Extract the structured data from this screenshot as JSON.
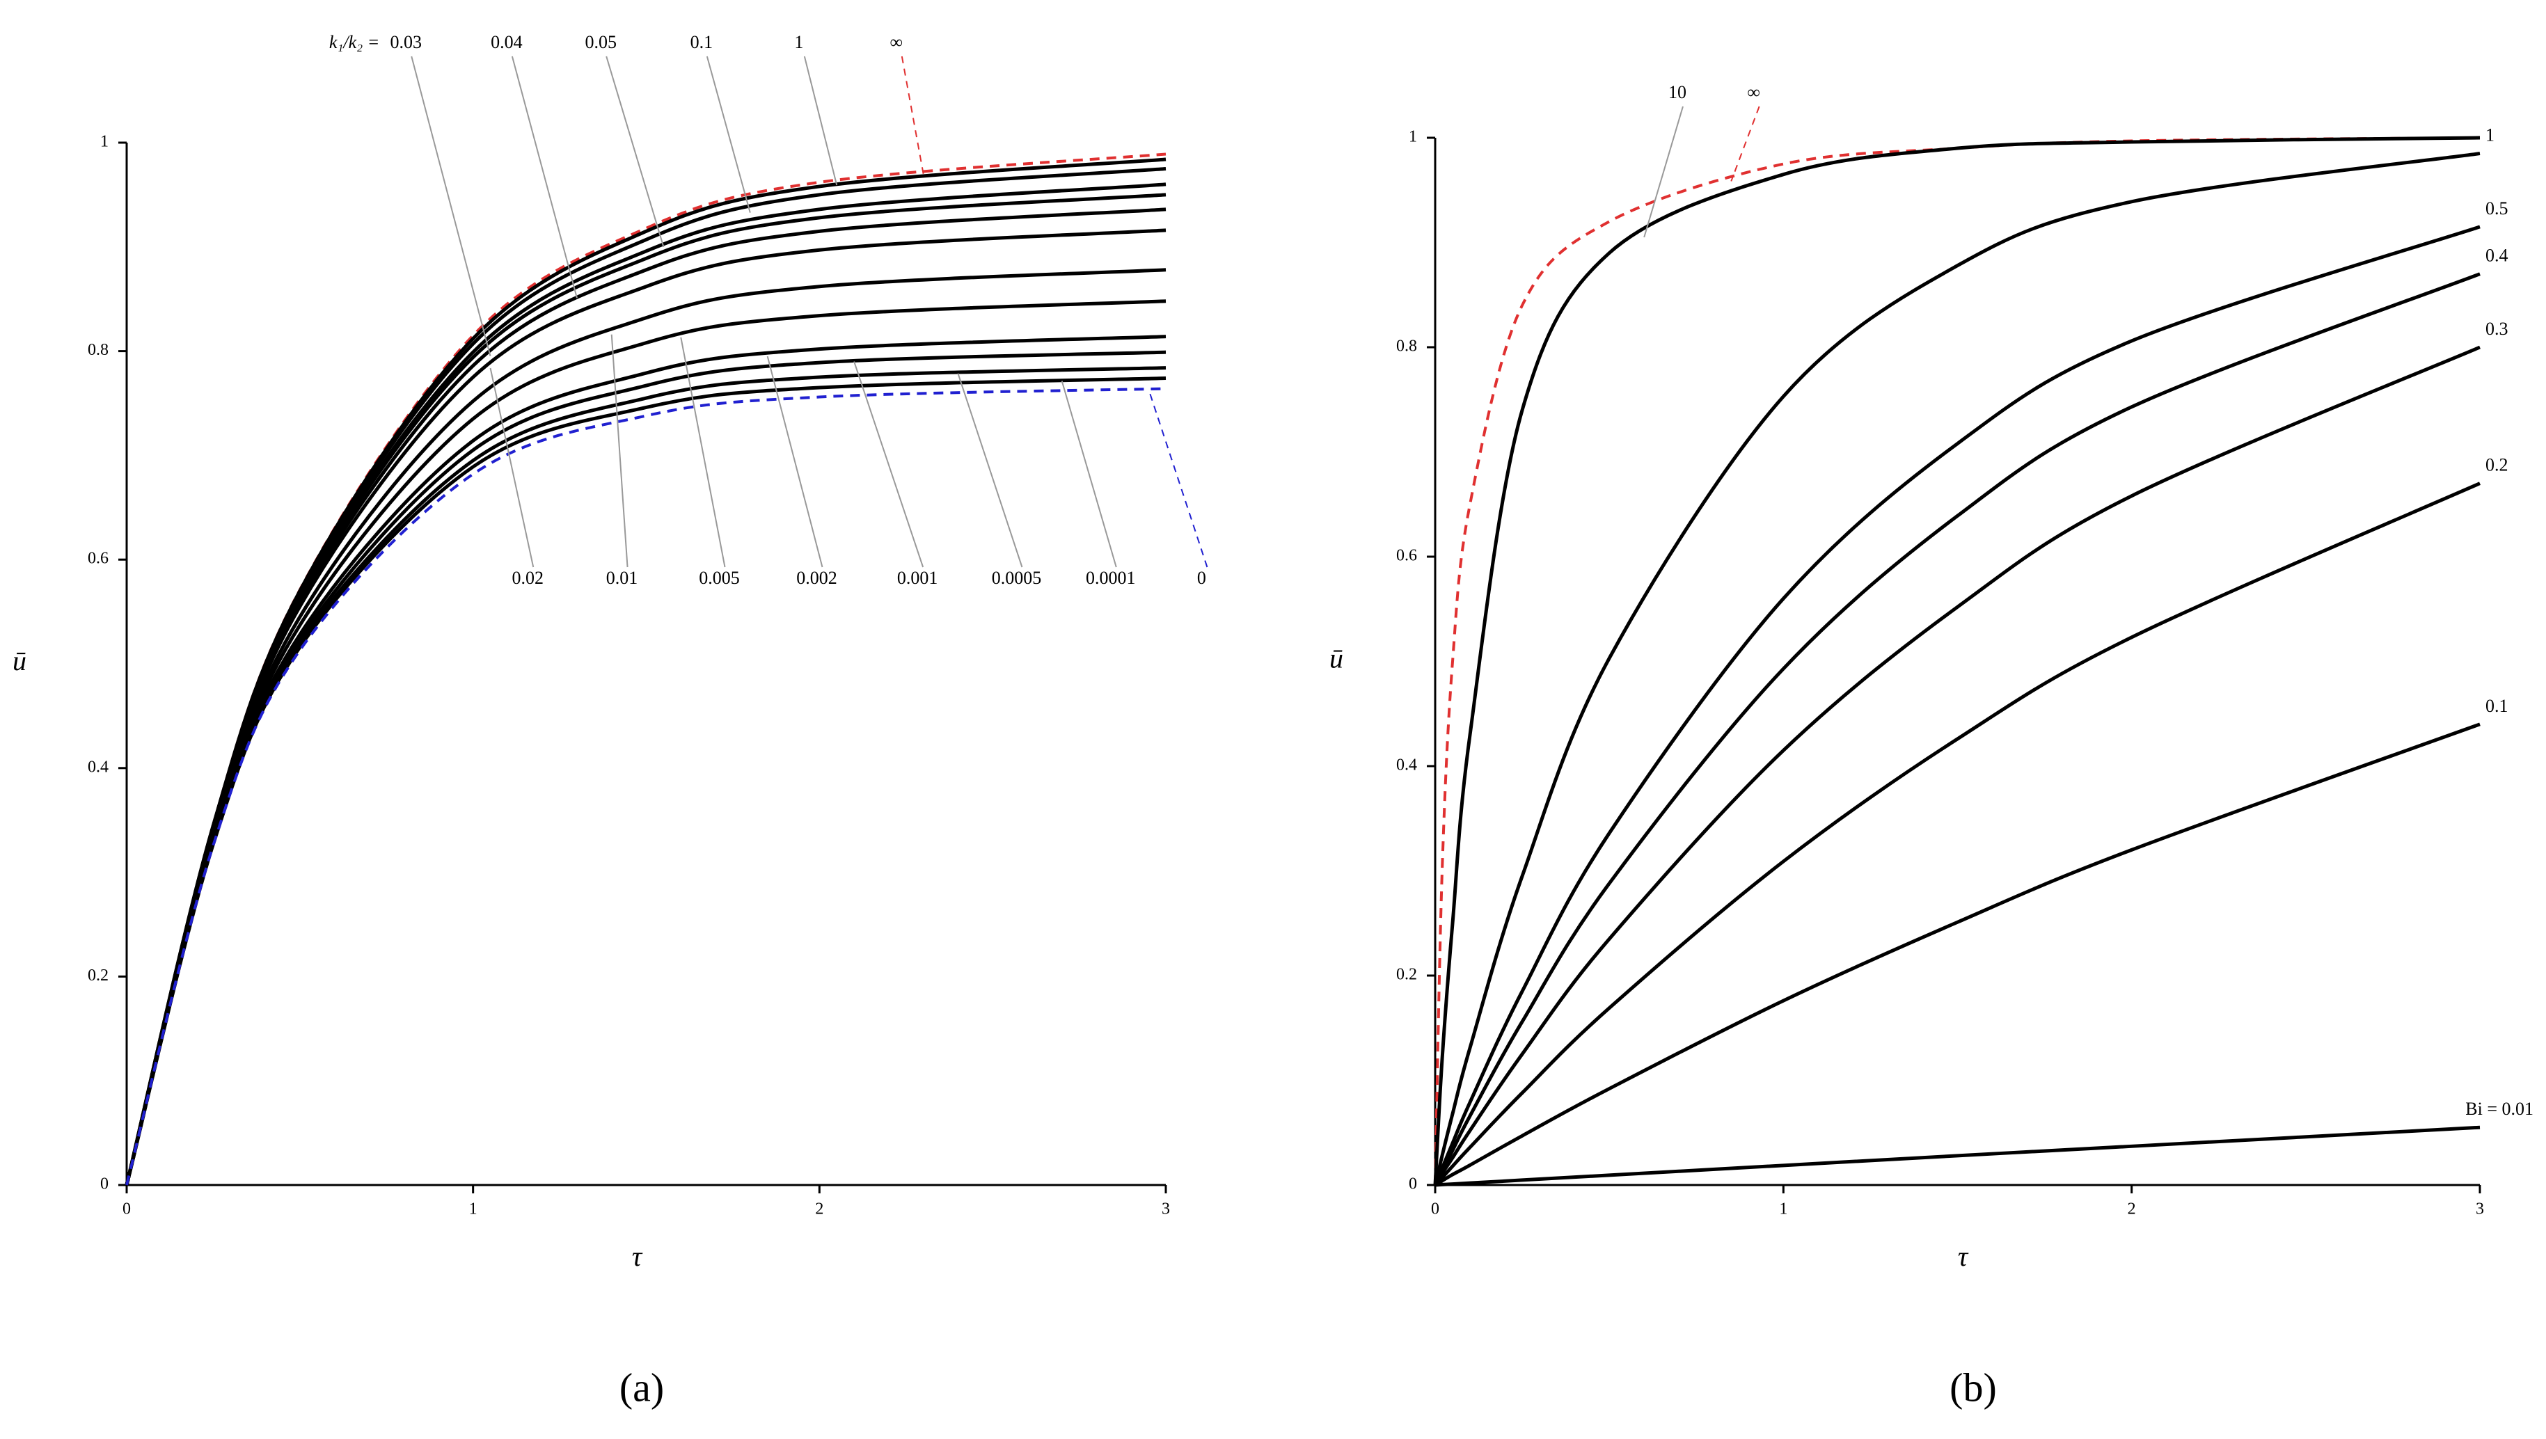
{
  "chart_data": [
    {
      "type": "line",
      "panel_label": "(a)",
      "xlabel": "τ",
      "ylabel": "ū",
      "annotation": "k₁/k₂ =",
      "x": [
        0,
        0.25,
        0.5,
        1,
        1.5,
        2,
        3
      ],
      "xlim": [
        0,
        3
      ],
      "ylim": [
        0,
        1
      ],
      "xticks": [
        0,
        1,
        2,
        3
      ],
      "yticks": [
        0,
        0.2,
        0.4,
        0.6,
        0.8,
        1
      ],
      "series": [
        {
          "name": "∞",
          "color": "#e03030",
          "dashed": true,
          "values": [
            0,
            0.346,
            0.571,
            0.815,
            0.918,
            0.962,
            0.989
          ]
        },
        {
          "name": "1",
          "color": "#000000",
          "dashed": false,
          "values": [
            0,
            0.345,
            0.57,
            0.812,
            0.915,
            0.958,
            0.984
          ]
        },
        {
          "name": "0.1",
          "color": "#000000",
          "dashed": false,
          "values": [
            0,
            0.345,
            0.568,
            0.807,
            0.907,
            0.95,
            0.975
          ]
        },
        {
          "name": "0.05",
          "color": "#000000",
          "dashed": false,
          "values": [
            0,
            0.344,
            0.565,
            0.799,
            0.896,
            0.936,
            0.96
          ]
        },
        {
          "name": "0.04",
          "color": "#000000",
          "dashed": false,
          "values": [
            0,
            0.343,
            0.563,
            0.794,
            0.889,
            0.928,
            0.95
          ]
        },
        {
          "name": "0.03",
          "color": "#000000",
          "dashed": false,
          "values": [
            0,
            0.342,
            0.559,
            0.786,
            0.878,
            0.915,
            0.936
          ]
        },
        {
          "name": "0.02",
          "color": "#000000",
          "dashed": false,
          "values": [
            0,
            0.34,
            0.555,
            0.775,
            0.862,
            0.897,
            0.916
          ]
        },
        {
          "name": "0.01",
          "color": "#000000",
          "dashed": false,
          "values": [
            0,
            0.337,
            0.545,
            0.752,
            0.832,
            0.862,
            0.878
          ]
        },
        {
          "name": "0.005",
          "color": "#000000",
          "dashed": false,
          "values": [
            0,
            0.334,
            0.537,
            0.735,
            0.808,
            0.834,
            0.848
          ]
        },
        {
          "name": "0.002",
          "color": "#000000",
          "dashed": false,
          "values": [
            0,
            0.331,
            0.528,
            0.714,
            0.779,
            0.802,
            0.814
          ]
        },
        {
          "name": "0.001",
          "color": "#000000",
          "dashed": false,
          "values": [
            0,
            0.33,
            0.523,
            0.705,
            0.767,
            0.789,
            0.799
          ]
        },
        {
          "name": "0.0005",
          "color": "#000000",
          "dashed": false,
          "values": [
            0,
            0.328,
            0.519,
            0.695,
            0.755,
            0.775,
            0.784
          ]
        },
        {
          "name": "0.0001",
          "color": "#000000",
          "dashed": false,
          "values": [
            0,
            0.327,
            0.516,
            0.689,
            0.746,
            0.765,
            0.774
          ]
        },
        {
          "name": "0",
          "color": "#2020d0",
          "dashed": true,
          "values": [
            0,
            0.326,
            0.513,
            0.682,
            0.738,
            0.756,
            0.764
          ]
        }
      ]
    },
    {
      "type": "line",
      "panel_label": "(b)",
      "xlabel": "τ",
      "ylabel": "ū",
      "x": [
        0,
        0.02,
        0.05,
        0.1,
        0.25,
        0.5,
        1,
        1.5,
        2,
        3
      ],
      "xlim": [
        0,
        3
      ],
      "ylim": [
        0,
        1
      ],
      "xticks": [
        0,
        1,
        2,
        3
      ],
      "yticks": [
        0,
        0.2,
        0.4,
        0.6,
        0.8,
        1
      ],
      "series": [
        {
          "name": "∞",
          "color": "#e03030",
          "dashed": true,
          "values": [
            0,
            0.3,
            0.5,
            0.65,
            0.84,
            0.92,
            0.975,
            0.99,
            0.997,
            1.0
          ]
        },
        {
          "name": "10",
          "color": "#000000",
          "dashed": false,
          "values": [
            0,
            0.12,
            0.25,
            0.43,
            0.74,
            0.89,
            0.965,
            0.99,
            0.996,
            1.0
          ]
        },
        {
          "name": "1",
          "color": "#000000",
          "dashed": false,
          "values": [
            0,
            0.028,
            0.068,
            0.131,
            0.295,
            0.503,
            0.753,
            0.878,
            0.939,
            0.985
          ]
        },
        {
          "name": "0.5",
          "color": "#000000",
          "dashed": false,
          "values": [
            0,
            0.016,
            0.04,
            0.079,
            0.185,
            0.336,
            0.56,
            0.708,
            0.806,
            0.915
          ]
        },
        {
          "name": "0.4",
          "color": "#000000",
          "dashed": false,
          "values": [
            0,
            0.013,
            0.033,
            0.066,
            0.156,
            0.288,
            0.493,
            0.639,
            0.743,
            0.87
          ]
        },
        {
          "name": "0.3",
          "color": "#000000",
          "dashed": false,
          "values": [
            0,
            0.011,
            0.026,
            0.052,
            0.125,
            0.235,
            0.415,
            0.552,
            0.658,
            0.8
          ]
        },
        {
          "name": "0.2",
          "color": "#000000",
          "dashed": false,
          "values": [
            0,
            0.007,
            0.018,
            0.036,
            0.088,
            0.169,
            0.309,
            0.426,
            0.523,
            0.67
          ]
        },
        {
          "name": "0.1",
          "color": "#000000",
          "dashed": false,
          "values": [
            0,
            0.004,
            0.01,
            0.019,
            0.047,
            0.092,
            0.176,
            0.251,
            0.32,
            0.44
          ]
        },
        {
          "name": "Bi = 0.01",
          "color": "#000000",
          "dashed": false,
          "values": [
            0,
            0.0004,
            0.0009,
            0.0019,
            0.0047,
            0.0094,
            0.0187,
            0.028,
            0.037,
            0.055
          ]
        }
      ]
    }
  ]
}
